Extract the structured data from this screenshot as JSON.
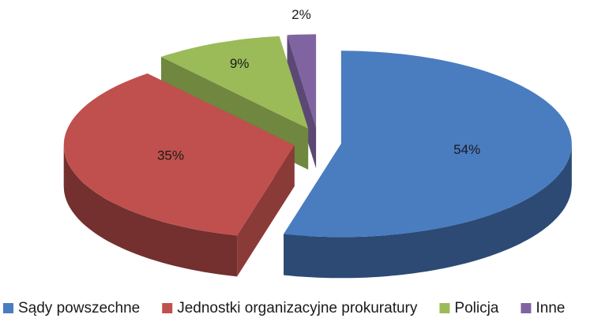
{
  "chart_data": {
    "type": "pie3d",
    "categories": [
      "Sądy powszechne",
      "Jednostki organizacyjne prokuratury",
      "Policja",
      "Inne"
    ],
    "values": [
      54,
      35,
      9,
      2
    ],
    "value_labels": [
      "54%",
      "35%",
      "9%",
      "2%"
    ],
    "colors": [
      "#4a7cc0",
      "#c0504d",
      "#9bbb59",
      "#8064a2"
    ],
    "legend": "bottom"
  }
}
